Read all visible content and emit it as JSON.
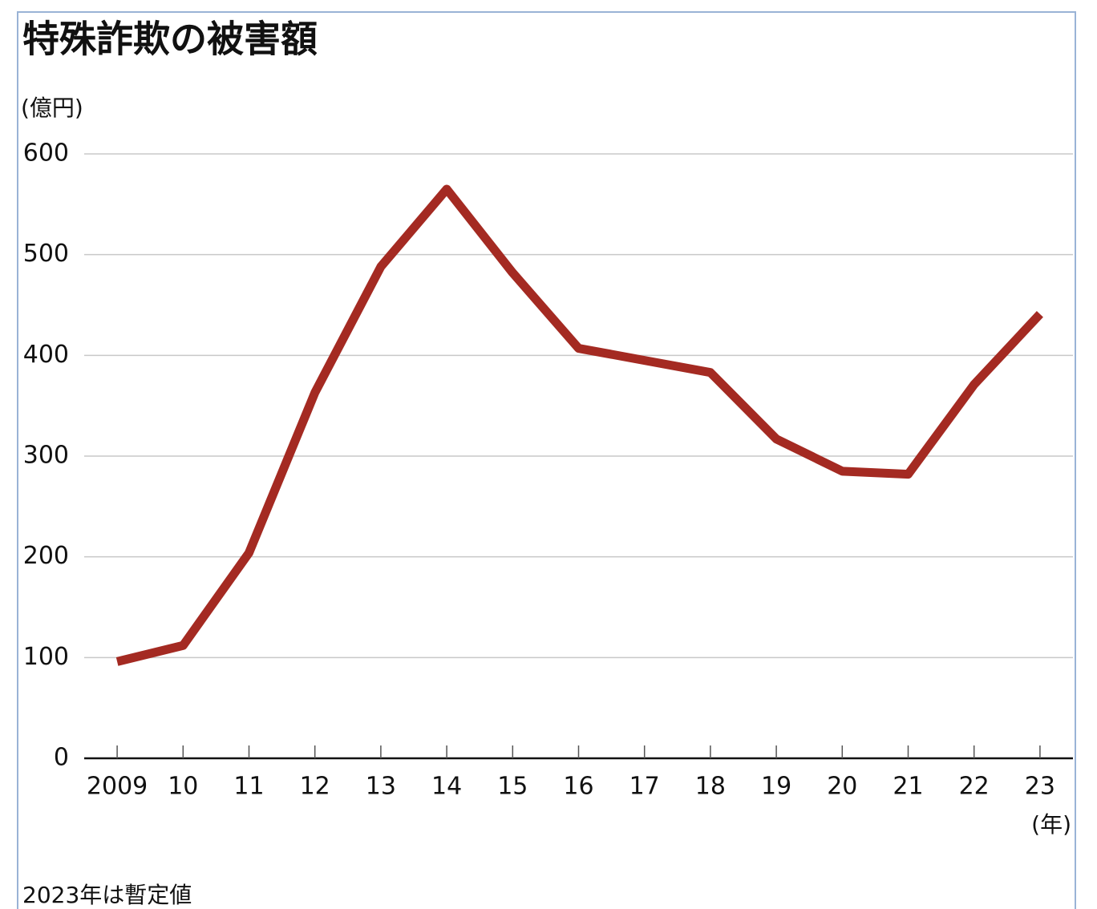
{
  "chart_data": {
    "type": "line",
    "title": "特殊詐欺の被害額",
    "y_label": "(億円)",
    "x_label": "(年)",
    "note": "2023年は暫定値",
    "categories": [
      "2009",
      "10",
      "11",
      "12",
      "13",
      "14",
      "15",
      "16",
      "17",
      "18",
      "19",
      "20",
      "21",
      "22",
      "23"
    ],
    "series": [
      {
        "name": "被害額",
        "color": "#a42a22",
        "values": [
          96,
          112,
          204,
          363,
          488,
          565,
          482,
          407,
          395,
          383,
          317,
          285,
          282,
          371,
          441
        ]
      }
    ],
    "ylim": [
      0,
      600
    ],
    "yticks": [
      0,
      100,
      200,
      300,
      400,
      500,
      600
    ],
    "grid": true
  }
}
